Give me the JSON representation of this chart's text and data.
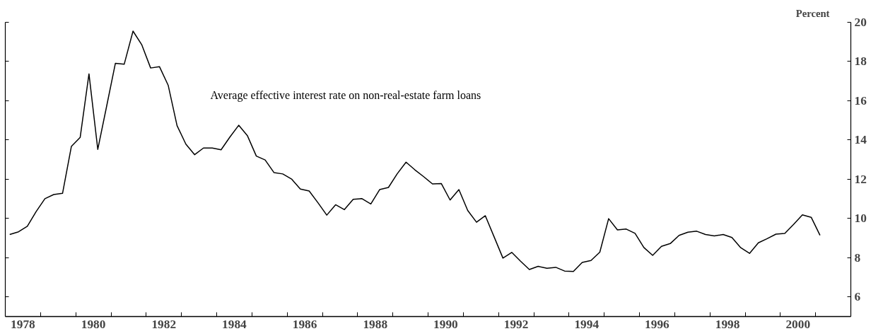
{
  "chart_data": {
    "type": "line",
    "ylabel": "Percent",
    "x": [
      1978.125,
      1978.375,
      1978.625,
      1978.875,
      1979.125,
      1979.375,
      1979.625,
      1979.875,
      1980.125,
      1980.375,
      1980.625,
      1980.875,
      1981.125,
      1981.375,
      1981.625,
      1981.875,
      1982.125,
      1982.375,
      1982.625,
      1982.875,
      1983.125,
      1983.375,
      1983.625,
      1983.875,
      1984.125,
      1984.375,
      1984.625,
      1984.875,
      1985.125,
      1985.375,
      1985.625,
      1985.875,
      1986.125,
      1986.375,
      1986.625,
      1986.875,
      1987.125,
      1987.375,
      1987.625,
      1987.875,
      1988.125,
      1988.375,
      1988.625,
      1988.875,
      1989.125,
      1989.375,
      1989.625,
      1989.875,
      1990.125,
      1990.375,
      1990.625,
      1990.875,
      1991.125,
      1991.375,
      1991.625,
      1991.875,
      1992.125,
      1992.375,
      1992.625,
      1992.875,
      1993.125,
      1993.375,
      1993.625,
      1993.875,
      1994.125,
      1994.375,
      1994.625,
      1994.875,
      1995.125,
      1995.375,
      1995.625,
      1995.875,
      1996.125,
      1996.375,
      1996.625,
      1996.875,
      1997.125,
      1997.375,
      1997.625,
      1997.875,
      1998.125,
      1998.375,
      1998.625,
      1998.875,
      1999.125,
      1999.375,
      1999.625,
      1999.875,
      2000.125,
      2000.375,
      2000.625,
      2000.875,
      2001.125
    ],
    "series": [
      {
        "name": "Average effective interest rate on non-real-estate farm loans",
        "color": "#000000",
        "values": [
          9.18,
          9.32,
          9.6,
          10.35,
          11.01,
          11.22,
          11.28,
          13.67,
          14.13,
          17.37,
          13.52,
          15.71,
          17.91,
          17.86,
          19.55,
          18.85,
          17.67,
          17.74,
          16.78,
          14.73,
          13.79,
          13.25,
          13.59,
          13.59,
          13.5,
          14.15,
          14.75,
          14.21,
          13.18,
          12.98,
          12.34,
          12.27,
          12.01,
          11.5,
          11.4,
          10.8,
          10.17,
          10.7,
          10.45,
          10.98,
          11.01,
          10.74,
          11.47,
          11.58,
          12.28,
          12.87,
          12.48,
          12.13,
          11.76,
          11.78,
          10.94,
          11.47,
          10.41,
          9.81,
          10.14,
          9.06,
          7.98,
          8.27,
          7.82,
          7.4,
          7.56,
          7.46,
          7.51,
          7.32,
          7.3,
          7.76,
          7.86,
          8.28,
          9.99,
          9.42,
          9.46,
          9.24,
          8.52,
          8.12,
          8.58,
          8.72,
          9.14,
          9.3,
          9.35,
          9.18,
          9.11,
          9.18,
          9.03,
          8.51,
          8.22,
          8.76,
          8.97,
          9.2,
          9.24,
          9.7,
          10.18,
          10.06,
          9.14
        ]
      }
    ],
    "xlim": [
      1978,
      2002
    ],
    "xticks": [
      {
        "value": 1978.5,
        "label": "1978"
      },
      {
        "value": 1980.5,
        "label": "1980"
      },
      {
        "value": 1982.5,
        "label": "1982"
      },
      {
        "value": 1984.5,
        "label": "1984"
      },
      {
        "value": 1986.5,
        "label": "1986"
      },
      {
        "value": 1988.5,
        "label": "1988"
      },
      {
        "value": 1990.5,
        "label": "1990"
      },
      {
        "value": 1992.5,
        "label": "1992"
      },
      {
        "value": 1994.5,
        "label": "1994"
      },
      {
        "value": 1996.5,
        "label": "1996"
      },
      {
        "value": 1998.5,
        "label": "1998"
      },
      {
        "value": 2000.5,
        "label": "2000"
      },
      {
        "value": 1979,
        "label": null
      },
      {
        "value": 1980,
        "label": null
      },
      {
        "value": 1981,
        "label": null
      },
      {
        "value": 1982,
        "label": null
      },
      {
        "value": 1983,
        "label": null
      },
      {
        "value": 1984,
        "label": null
      },
      {
        "value": 1985,
        "label": null
      },
      {
        "value": 1986,
        "label": null
      },
      {
        "value": 1987,
        "label": null
      },
      {
        "value": 1988,
        "label": null
      },
      {
        "value": 1989,
        "label": null
      },
      {
        "value": 1990,
        "label": null
      },
      {
        "value": 1991,
        "label": null
      },
      {
        "value": 1992,
        "label": null
      },
      {
        "value": 1993,
        "label": null
      },
      {
        "value": 1994,
        "label": null
      },
      {
        "value": 1995,
        "label": null
      },
      {
        "value": 1996,
        "label": null
      },
      {
        "value": 1997,
        "label": null
      },
      {
        "value": 1998,
        "label": null
      },
      {
        "value": 1999,
        "label": null
      },
      {
        "value": 2000,
        "label": null
      },
      {
        "value": 2001,
        "label": null
      }
    ],
    "ylim": [
      5,
      20
    ],
    "yticks": [
      6,
      8,
      10,
      12,
      14,
      16,
      18,
      20
    ],
    "grid": false,
    "legend": false,
    "marker": "none",
    "line_style": "solid"
  }
}
